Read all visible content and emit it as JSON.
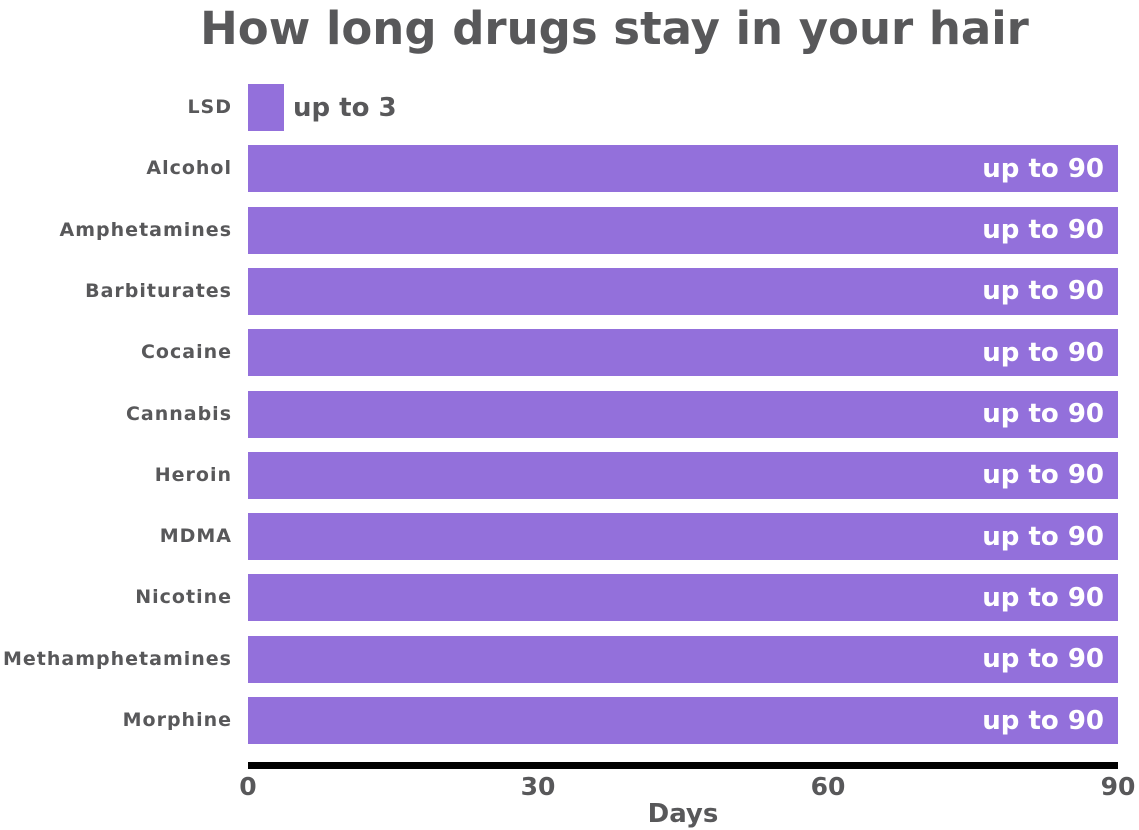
{
  "title": "How long drugs stay in your hair",
  "colors": {
    "bar": "#9370DB",
    "text": "#58585a",
    "axis": "#000000",
    "bar_label_inside": "#ffffff",
    "background": "#ffffff"
  },
  "chart_data": {
    "type": "bar",
    "orientation": "horizontal",
    "title": "How long drugs stay in your hair",
    "categories": [
      "LSD",
      "Alcohol",
      "Amphetamines",
      "Barbiturates",
      "Cocaine",
      "Cannabis",
      "Heroin",
      "MDMA",
      "Nicotine",
      "Methamphetamines",
      "Morphine"
    ],
    "values": [
      3,
      90,
      90,
      90,
      90,
      90,
      90,
      90,
      90,
      90,
      90
    ],
    "bar_labels": [
      "up to 3",
      "up to 90",
      "up to 90",
      "up to 90",
      "up to 90",
      "up to 90",
      "up to 90",
      "up to 90",
      "up to 90",
      "up to 90",
      "up to 90"
    ],
    "xlabel": "Days",
    "ylabel": "",
    "xlim": [
      0,
      90
    ],
    "x_ticks": [
      0,
      30,
      60,
      90
    ],
    "x_tick_labels": [
      "0",
      "30",
      "60",
      "90"
    ],
    "grid": false,
    "legend": false,
    "bar_color": "#9370DB"
  }
}
